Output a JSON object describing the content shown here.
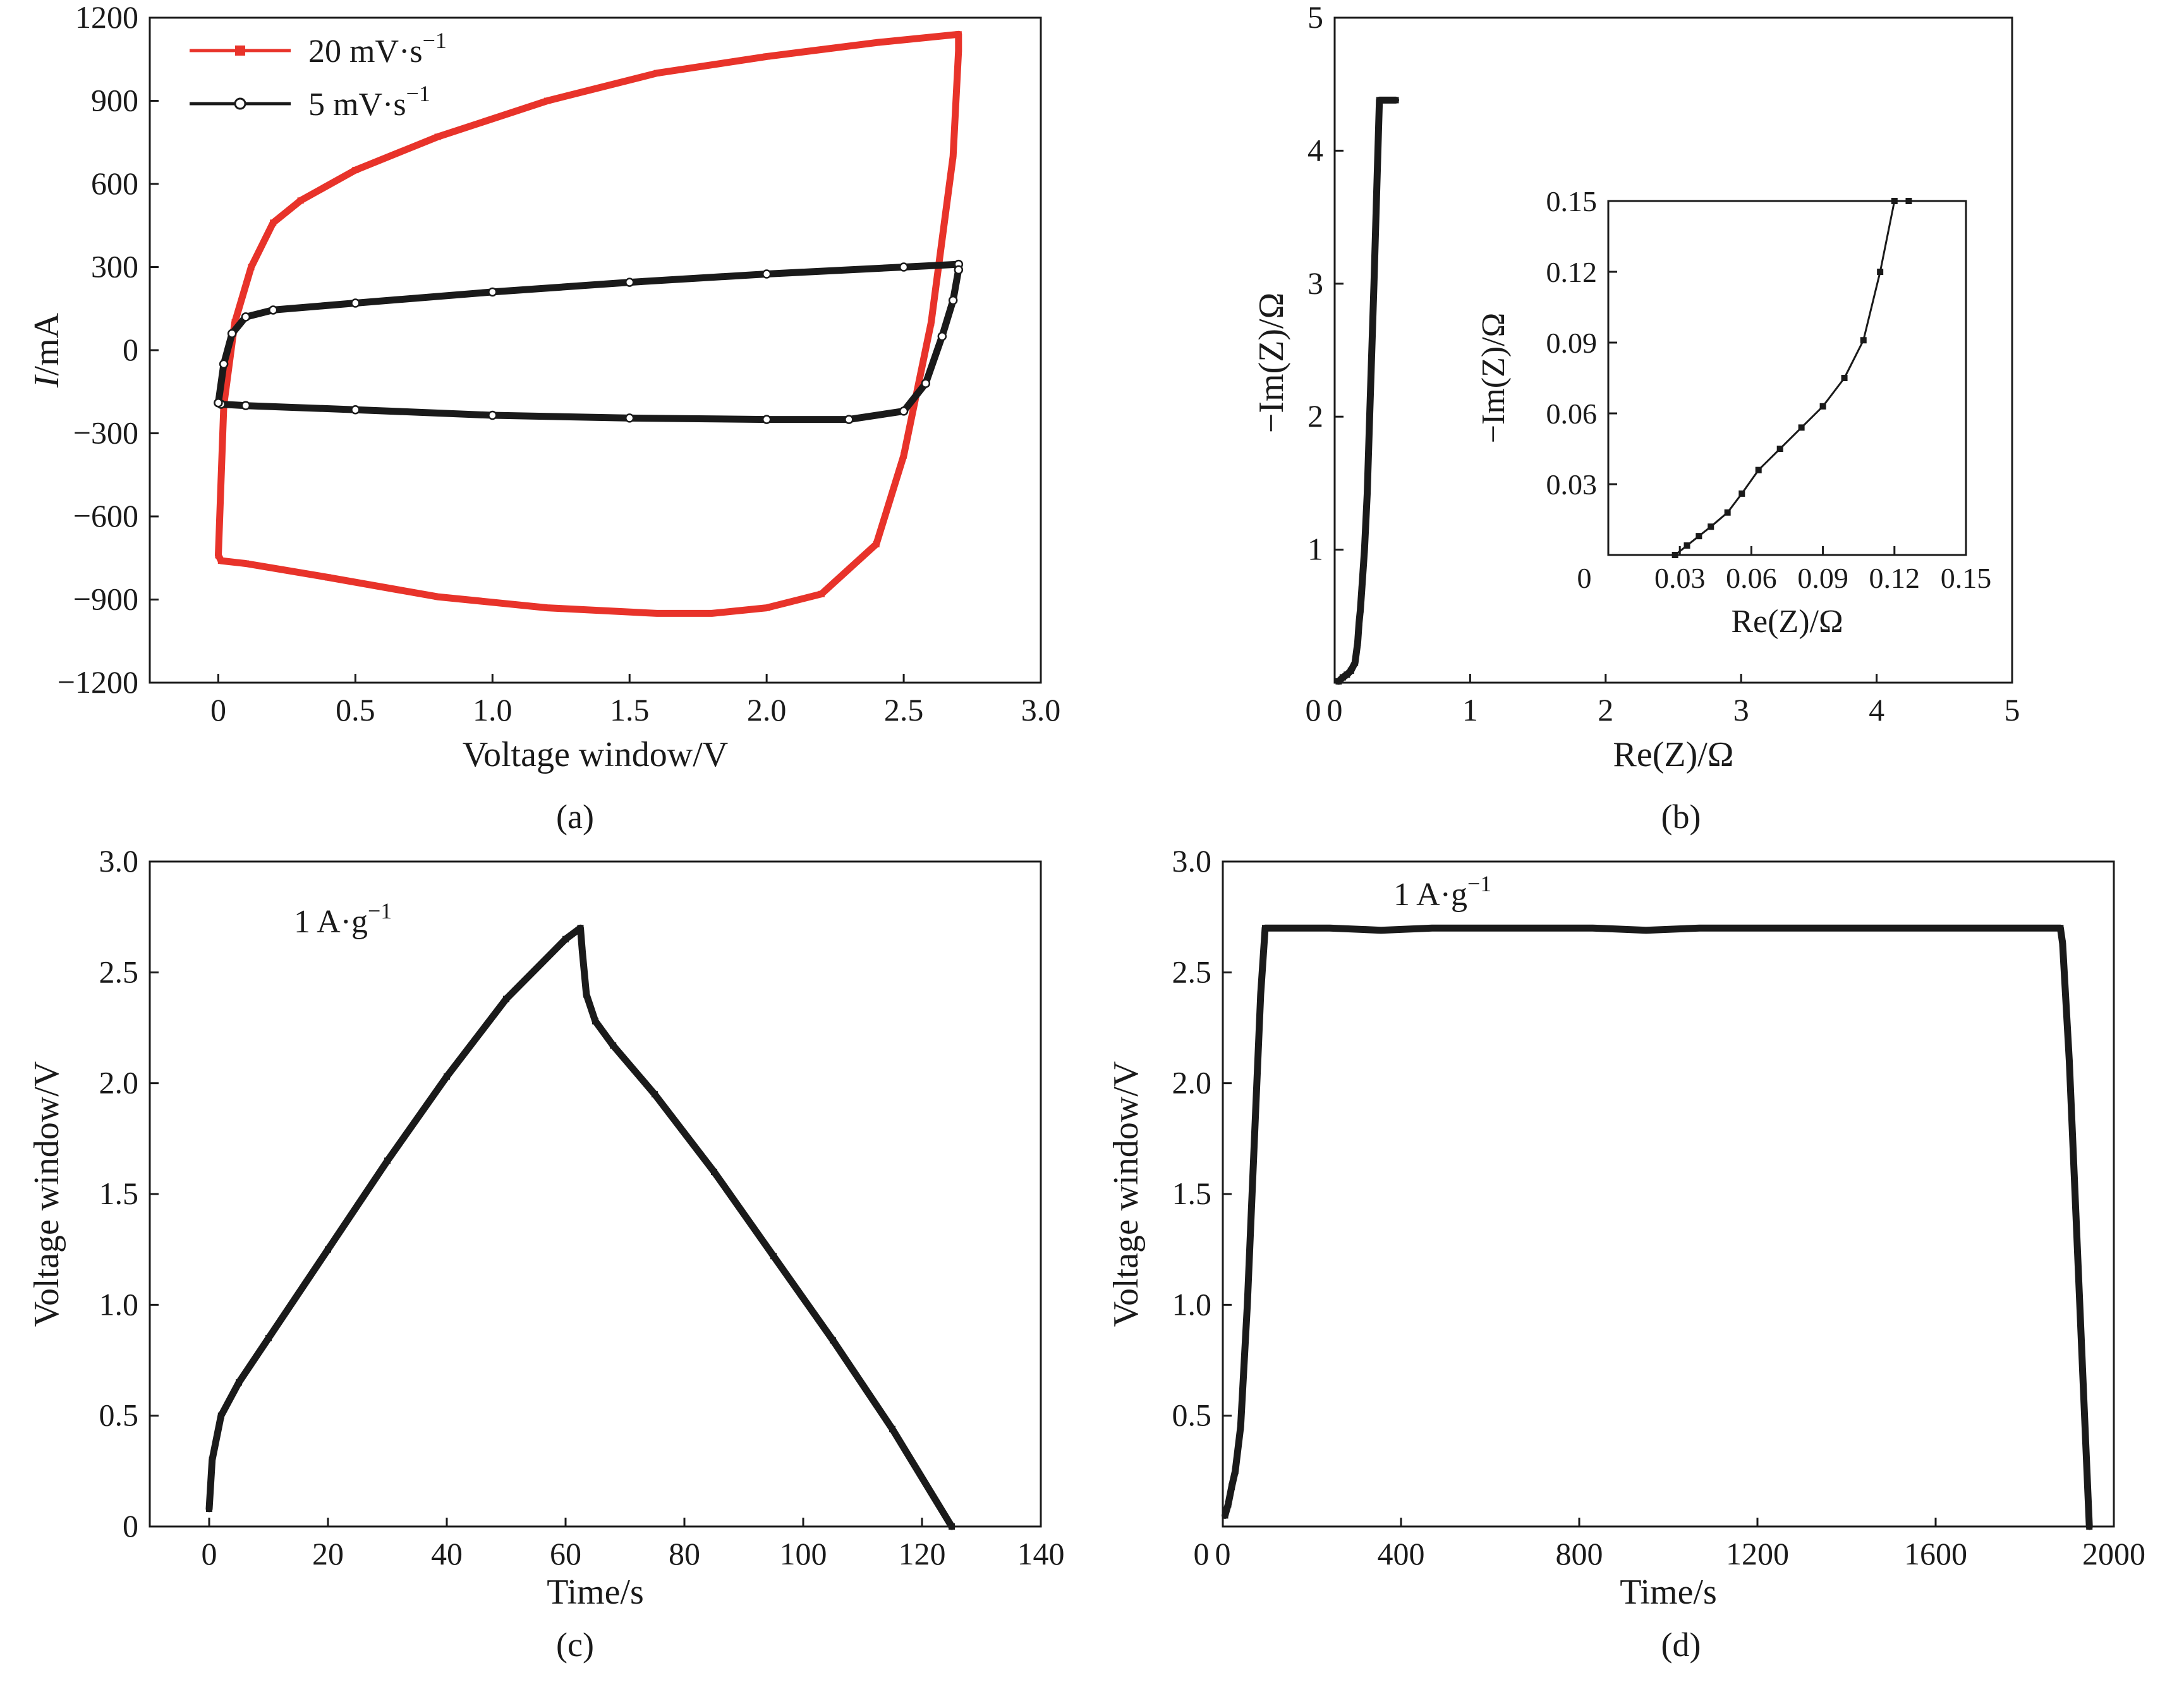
{
  "chart_data": [
    {
      "panel": "(a)",
      "type": "line",
      "xlabel": "Voltage window/V",
      "ylabel": "I/mA",
      "ylabel_italic": "I",
      "ylabel_rest": "/mA",
      "xlim": [
        -0.25,
        3.0
      ],
      "ylim": [
        -1200,
        1200
      ],
      "x_ticks": [
        "0",
        "0.5",
        "1.0",
        "1.5",
        "2.0",
        "2.5",
        "3.0"
      ],
      "y_ticks": [
        "−1200",
        "−900",
        "−600",
        "−300",
        "0",
        "300",
        "600",
        "900",
        "1200"
      ],
      "legend_position": "top-left",
      "series": [
        {
          "name": "20 mV·s⁻¹",
          "name_main": "20 mV·s",
          "name_sup": "−1",
          "color": "#e8332a",
          "marker": "square",
          "x": [
            0,
            0.02,
            0.06,
            0.12,
            0.2,
            0.3,
            0.5,
            0.8,
            1.2,
            1.6,
            2.0,
            2.4,
            2.7,
            2.7,
            2.68,
            2.6,
            2.5,
            2.4,
            2.2,
            2.0,
            1.8,
            1.6,
            1.2,
            0.8,
            0.4,
            0.1,
            0.01,
            0
          ],
          "y": [
            -740,
            -200,
            100,
            300,
            460,
            540,
            650,
            770,
            900,
            1000,
            1060,
            1110,
            1140,
            1080,
            700,
            100,
            -380,
            -700,
            -880,
            -930,
            -950,
            -950,
            -930,
            -890,
            -820,
            -770,
            -760,
            -740
          ]
        },
        {
          "name": "5 mV·s⁻¹",
          "name_main": "5 mV·s",
          "name_sup": "−1",
          "color": "#1a1a1a",
          "marker": "circle",
          "x": [
            0,
            0.02,
            0.05,
            0.1,
            0.2,
            0.5,
            1.0,
            1.5,
            2.0,
            2.5,
            2.7,
            2.7,
            2.68,
            2.64,
            2.58,
            2.5,
            2.3,
            2.0,
            1.5,
            1.0,
            0.5,
            0.1,
            0.01,
            0
          ],
          "y": [
            -190,
            -50,
            60,
            120,
            145,
            170,
            210,
            245,
            275,
            300,
            310,
            290,
            180,
            50,
            -120,
            -220,
            -250,
            -250,
            -245,
            -235,
            -215,
            -200,
            -195,
            -190
          ]
        }
      ]
    },
    {
      "panel": "(b)",
      "type": "line",
      "xlabel": "Re(Z)/Ω",
      "ylabel": "−Im(Z)/Ω",
      "xlim": [
        0,
        5
      ],
      "ylim": [
        0,
        5
      ],
      "x_ticks": [
        "0",
        "1",
        "2",
        "3",
        "4",
        "5"
      ],
      "y_ticks": [
        "1",
        "2",
        "3",
        "4",
        "5"
      ],
      "series": [
        {
          "name": "",
          "color": "#1a1a1a",
          "marker": "square",
          "x": [
            0.03,
            0.06,
            0.09,
            0.12,
            0.15,
            0.17,
            0.18,
            0.19,
            0.2,
            0.22,
            0.24,
            0.26,
            0.29,
            0.33,
            0.38,
            0.45
          ],
          "y": [
            0.01,
            0.04,
            0.06,
            0.09,
            0.15,
            0.3,
            0.45,
            0.55,
            0.7,
            1.0,
            1.42,
            2.05,
            3.0,
            4.38,
            4.38,
            4.38
          ]
        }
      ],
      "inset": {
        "xlabel": "Re(Z)/Ω",
        "ylabel": "−Im(Z)/Ω",
        "xlim": [
          0,
          0.15
        ],
        "ylim": [
          0,
          0.15
        ],
        "x_ticks": [
          "0.03",
          "0.06",
          "0.09",
          "0.12",
          "0.15"
        ],
        "y_ticks": [
          "0.03",
          "0.06",
          "0.09",
          "0.12",
          "0.15"
        ],
        "origin_label": "0",
        "series": [
          {
            "name": "",
            "color": "#1a1a1a",
            "marker": "square",
            "x": [
              0.028,
              0.033,
              0.038,
              0.043,
              0.05,
              0.056,
              0.063,
              0.072,
              0.081,
              0.09,
              0.099,
              0.107,
              0.114,
              0.12,
              0.126
            ],
            "y": [
              0.0,
              0.004,
              0.008,
              0.012,
              0.018,
              0.026,
              0.036,
              0.045,
              0.054,
              0.063,
              0.075,
              0.091,
              0.12,
              0.15,
              0.15
            ]
          }
        ]
      }
    },
    {
      "panel": "(c)",
      "type": "line",
      "xlabel": "Time/s",
      "ylabel": "Voltage window/V",
      "xlim": [
        -10,
        140
      ],
      "ylim": [
        0,
        3.0
      ],
      "x_ticks": [
        "0",
        "20",
        "40",
        "60",
        "80",
        "100",
        "120",
        "140"
      ],
      "y_ticks": [
        "0",
        "0.5",
        "1.0",
        "1.5",
        "2.0",
        "2.5",
        "3.0"
      ],
      "annotation": {
        "main": "1 A·g",
        "sup": "−1"
      },
      "series": [
        {
          "name": "",
          "color": "#1a1a1a",
          "marker": "square",
          "x": [
            0,
            0.5,
            2,
            5,
            10,
            20,
            30,
            40,
            50,
            60,
            62.5,
            62.8,
            63.5,
            65,
            68,
            75,
            85,
            95,
            105,
            115,
            125
          ],
          "y": [
            0.08,
            0.3,
            0.5,
            0.65,
            0.85,
            1.25,
            1.65,
            2.03,
            2.38,
            2.65,
            2.7,
            2.6,
            2.4,
            2.28,
            2.17,
            1.95,
            1.6,
            1.22,
            0.84,
            0.44,
            0.0
          ]
        }
      ]
    },
    {
      "panel": "(d)",
      "type": "line",
      "xlabel": "Time/s",
      "ylabel": "Voltage window/V",
      "xlim": [
        0,
        2000
      ],
      "ylim": [
        0,
        3.0
      ],
      "x_ticks": [
        "0",
        "400",
        "800",
        "1200",
        "1600",
        "2000"
      ],
      "y_ticks": [
        "0.5",
        "1.0",
        "1.5",
        "2.0",
        "2.5",
        "3.0"
      ],
      "origin_label": "0",
      "annotation": {
        "main": "1 A·g",
        "sup": "−1"
      },
      "series": [
        {
          "name": "",
          "color": "#1a1a1a",
          "marker": "square",
          "x": [
            5,
            12,
            20,
            28,
            40,
            55,
            70,
            85,
            95,
            155,
            240,
            355,
            470,
            590,
            710,
            830,
            950,
            1070,
            1190,
            1310,
            1430,
            1550,
            1670,
            1790,
            1880,
            1885,
            1900,
            1915,
            1930,
            1945
          ],
          "y": [
            0.05,
            0.1,
            0.18,
            0.25,
            0.45,
            1.0,
            1.7,
            2.4,
            2.7,
            2.7,
            2.7,
            2.69,
            2.7,
            2.7,
            2.7,
            2.7,
            2.69,
            2.7,
            2.7,
            2.7,
            2.7,
            2.7,
            2.7,
            2.7,
            2.7,
            2.63,
            2.1,
            1.4,
            0.7,
            0.0
          ]
        }
      ]
    }
  ]
}
